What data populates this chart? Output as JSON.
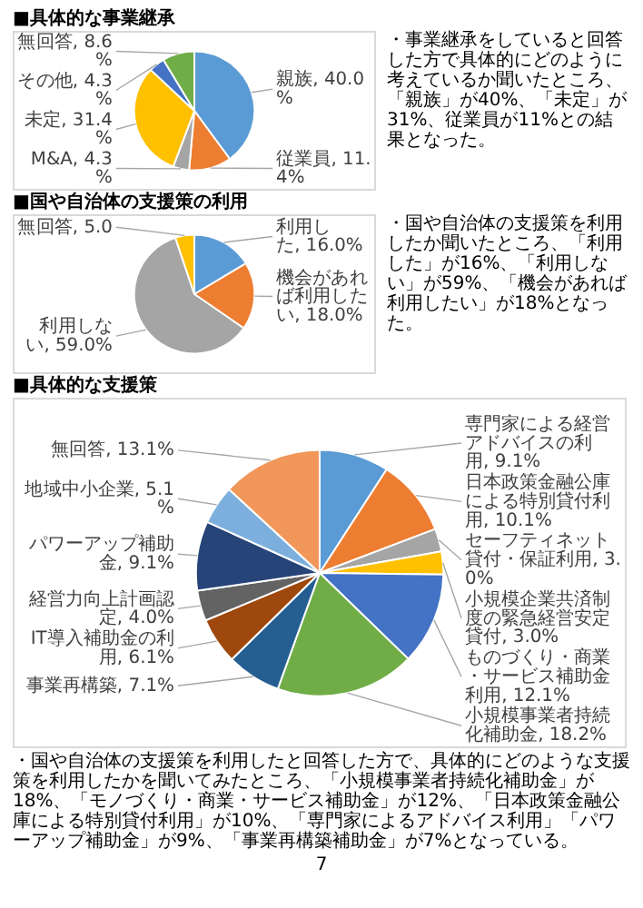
{
  "chart_data": [
    {
      "type": "pie",
      "title": "■具体的な事業継承",
      "categories": [
        "親族",
        "従業員",
        "M&A",
        "未定",
        "その他",
        "無回答"
      ],
      "values": [
        40.0,
        11.4,
        4.3,
        31.4,
        4.3,
        8.6
      ],
      "value_labels": [
        "40.0%",
        "11.4%",
        "4.3%",
        "31.4%",
        "4.3%",
        "8.6%"
      ],
      "colors": [
        "#5b9bd5",
        "#ed7d31",
        "#a5a5a5",
        "#ffc000",
        "#4472c4",
        "#70ad47"
      ],
      "annotations": [
        "・事業継承をしていると回答した方で具体的にどのように考えているか聞いたところ、「親族」が40%、「未定」が31%、従業員が11%との結果となった。"
      ]
    },
    {
      "type": "pie",
      "title": "■国や自治体の支援策の利用",
      "categories": [
        "利用した",
        "機会があれば利用したい",
        "利用しない",
        "無回答"
      ],
      "values": [
        16.0,
        18.0,
        59.0,
        5.0
      ],
      "value_labels": [
        "16.0%",
        "18.0%",
        "59.0%",
        "5.0"
      ],
      "colors": [
        "#5b9bd5",
        "#ed7d31",
        "#a5a5a5",
        "#ffc000"
      ],
      "annotations": [
        "・国や自治体の支援策を利用したか聞いたところ、「利用した」が16%、「利用しない」が59%、「機会があれば利用したい」が18%となった。"
      ]
    },
    {
      "type": "pie",
      "title": "■具体的な支援策",
      "categories": [
        "専門家による経営アドバイスの利用",
        "日本政策金融公庫による特別貸付利用",
        "セーフティネット貸付・保証利用",
        "小規模企業共済制度の緊急経営安定貸付",
        "ものづくり・商業・サービス補助金利用",
        "小規模事業者持続化補助金",
        "事業再構築",
        "IT導入補助金の利用",
        "経営力向上計画認定",
        "パワーアップ補助金",
        "地域中小企業",
        "無回答"
      ],
      "values": [
        9.1,
        10.1,
        3.0,
        3.0,
        12.1,
        18.2,
        7.1,
        6.1,
        4.0,
        9.1,
        5.1,
        13.1
      ],
      "value_labels": [
        "9.1%",
        "10.1%",
        "3.0%",
        "3.0%",
        "12.1%",
        "18.2%",
        "7.1%",
        "6.1%",
        "4.0%",
        "9.1%",
        "5.1%",
        "13.1%"
      ],
      "colors": [
        "#5b9bd5",
        "#ed7d31",
        "#a5a5a5",
        "#ffc000",
        "#4472c4",
        "#70ad47",
        "#255e91",
        "#9e480e",
        "#636363",
        "#264478",
        "#7cafdd",
        "#f1975a"
      ],
      "annotations": [
        "・国や自治体の支援策を利用したと回答した方で、具体的にどのような支援策を利用したかを聞いてみたところ、「小規模事業者持続化補助金」が18%、「モノづくり・商業・サービス補助金」が12%、「日本政策金融公庫による特別貸付利用」が10%、「専門家によるアドバイス利用」「パワーアップ補助金」が9%、「事業再構築補助金」が7%となっている。",
        "7"
      ]
    }
  ]
}
